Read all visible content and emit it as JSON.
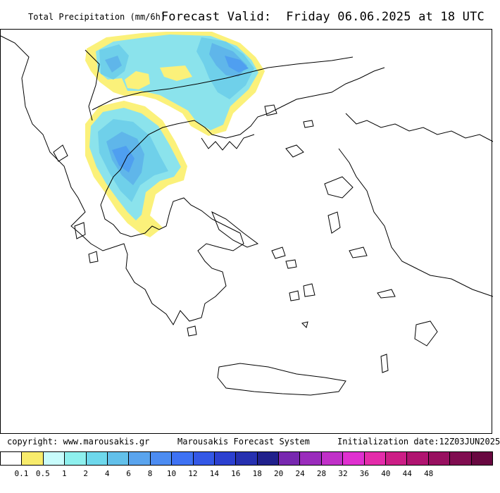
{
  "header": {
    "title": "Total Precipitation (mm/6h)",
    "valid_label": "Forecast Valid:",
    "valid_time": "Friday 06.06.2025 at 18 UTC"
  },
  "footer": {
    "copyright": "copyright: www.marousakis.gr",
    "system": "Marousakis Forecast System",
    "init": "Initialization date:12Z03JUN2025"
  },
  "legend": {
    "colors": [
      "#ffffff",
      "#f8ec6c",
      "#c8fcfc",
      "#8ef0ee",
      "#6ed8ec",
      "#62c0ea",
      "#5aa4ee",
      "#4c8cf2",
      "#3e72f4",
      "#3458e6",
      "#2c40d0",
      "#2630b0",
      "#20208c",
      "#7828b0",
      "#9a2cbc",
      "#c030c8",
      "#e030d0",
      "#e42caa",
      "#cc1e86",
      "#b01470",
      "#981060",
      "#800c50",
      "#680840"
    ],
    "ticks": [
      "0.1",
      "0.5",
      "1",
      "2",
      "4",
      "6",
      "8",
      "10",
      "12",
      "14",
      "16",
      "18",
      "20",
      "24",
      "28",
      "32",
      "36",
      "40",
      "44",
      "48"
    ]
  },
  "map": {
    "colors": {
      "light": "#fbf17a",
      "cyan1": "#bdf4f6",
      "cyan2": "#8be3ec",
      "cyan3": "#6fd0ea",
      "blue1": "#5fb6ea",
      "blue2": "#4f9ff0",
      "outline": "#000000"
    }
  }
}
